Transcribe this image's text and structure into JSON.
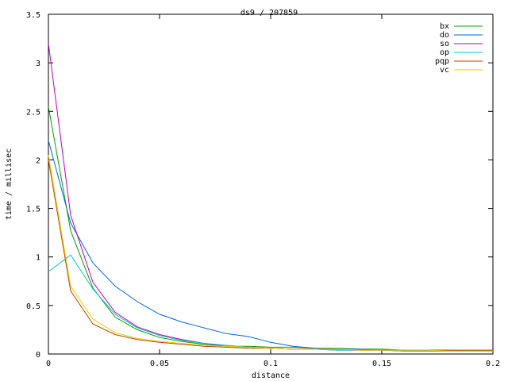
{
  "chart_data": {
    "type": "line",
    "title": "ds9 / 207859",
    "xlabel": "distance",
    "ylabel": "time / millisec",
    "xlim": [
      0,
      0.2
    ],
    "ylim": [
      0,
      3.5
    ],
    "xticks": [
      0,
      0.05,
      0.1,
      0.15,
      0.2
    ],
    "xtick_labels": [
      "0",
      "0.05",
      "0.1",
      "0.15",
      "0.2"
    ],
    "yticks": [
      0,
      0.5,
      1,
      1.5,
      2,
      2.5,
      3,
      3.5
    ],
    "ytick_labels": [
      "0",
      "0.5",
      "1",
      "1.5",
      "2",
      "2.5",
      "3",
      "3.5"
    ],
    "grid": false,
    "legend_position": "top-right",
    "series": [
      {
        "name": "bx",
        "color": "#00a000",
        "x": [
          0,
          0.01,
          0.02,
          0.03,
          0.04,
          0.05,
          0.06,
          0.07,
          0.08,
          0.09,
          0.1,
          0.11,
          0.12,
          0.13,
          0.14,
          0.15,
          0.16,
          0.17,
          0.18,
          0.19,
          0.2
        ],
        "y": [
          2.55,
          1.27,
          0.68,
          0.38,
          0.25,
          0.17,
          0.13,
          0.1,
          0.08,
          0.08,
          0.07,
          0.07,
          0.06,
          0.06,
          0.05,
          0.05,
          0.04,
          0.04,
          0.04,
          0.03,
          0.03
        ]
      },
      {
        "name": "do",
        "color": "#0066e0",
        "x": [
          0,
          0.01,
          0.02,
          0.03,
          0.04,
          0.05,
          0.06,
          0.07,
          0.08,
          0.09,
          0.1,
          0.11,
          0.12,
          0.13,
          0.14,
          0.15,
          0.16,
          0.17,
          0.18,
          0.19,
          0.2
        ],
        "y": [
          2.2,
          1.35,
          0.94,
          0.7,
          0.54,
          0.41,
          0.33,
          0.27,
          0.21,
          0.18,
          0.12,
          0.08,
          0.06,
          0.05,
          0.05,
          0.04,
          0.04,
          0.04,
          0.03,
          0.03,
          0.03
        ]
      },
      {
        "name": "so",
        "color": "#c000c0",
        "x": [
          0,
          0.01,
          0.02,
          0.03,
          0.04,
          0.05,
          0.06,
          0.07,
          0.08,
          0.09,
          0.1,
          0.11,
          0.12,
          0.13,
          0.14,
          0.15,
          0.16,
          0.17,
          0.18,
          0.19,
          0.2
        ],
        "y": [
          3.2,
          1.43,
          0.74,
          0.43,
          0.28,
          0.2,
          0.15,
          0.11,
          0.08,
          0.07,
          0.06,
          0.05,
          0.05,
          0.04,
          0.04,
          0.04,
          0.03,
          0.03,
          0.03,
          0.03,
          0.03
        ]
      },
      {
        "name": "op",
        "color": "#00c8c8",
        "x": [
          0,
          0.01,
          0.02,
          0.03,
          0.04,
          0.05,
          0.06,
          0.07,
          0.08,
          0.09,
          0.1,
          0.11,
          0.12,
          0.13,
          0.14,
          0.15,
          0.16,
          0.17,
          0.18,
          0.19,
          0.2
        ],
        "y": [
          0.85,
          1.02,
          0.67,
          0.41,
          0.27,
          0.19,
          0.14,
          0.11,
          0.09,
          0.07,
          0.06,
          0.05,
          0.05,
          0.04,
          0.04,
          0.04,
          0.03,
          0.03,
          0.03,
          0.03,
          0.03
        ]
      },
      {
        "name": "pqp",
        "color": "#c04000",
        "x": [
          0,
          0.01,
          0.02,
          0.03,
          0.04,
          0.05,
          0.06,
          0.07,
          0.08,
          0.09,
          0.1,
          0.11,
          0.12,
          0.13,
          0.14,
          0.15,
          0.16,
          0.17,
          0.18,
          0.19,
          0.2
        ],
        "y": [
          2.0,
          0.65,
          0.31,
          0.2,
          0.15,
          0.12,
          0.1,
          0.08,
          0.07,
          0.06,
          0.06,
          0.05,
          0.05,
          0.05,
          0.04,
          0.04,
          0.04,
          0.04,
          0.04,
          0.04,
          0.04
        ]
      },
      {
        "name": "vc",
        "color": "#e8d000",
        "x": [
          0,
          0.01,
          0.02,
          0.03,
          0.04,
          0.05,
          0.06,
          0.07,
          0.08,
          0.09,
          0.1,
          0.11,
          0.12,
          0.13,
          0.14,
          0.15,
          0.16,
          0.17,
          0.18,
          0.19,
          0.2
        ],
        "y": [
          2.05,
          0.7,
          0.36,
          0.22,
          0.16,
          0.13,
          0.11,
          0.09,
          0.08,
          0.07,
          0.06,
          0.05,
          0.05,
          0.05,
          0.04,
          0.04,
          0.04,
          0.04,
          0.03,
          0.03,
          0.03
        ]
      }
    ]
  }
}
